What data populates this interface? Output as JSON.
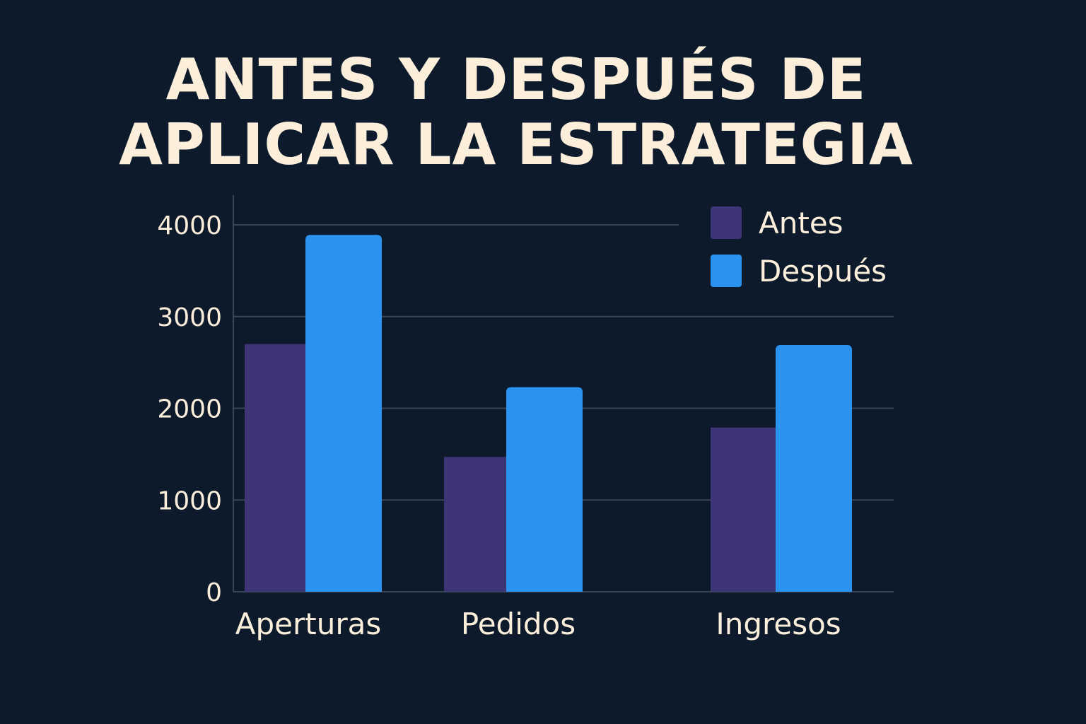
{
  "title_lines": [
    "ANTES Y DESPUÉS DE",
    "APLICAR LA ESTRATEGIA"
  ],
  "colors": {
    "background": "#0d1a2b",
    "text": "#fbeedb",
    "grid": "#3a4656",
    "antes": "#3d3575",
    "despues": "#2a93f0"
  },
  "chart_data": {
    "type": "bar",
    "title": "ANTES Y DESPUÉS DE APLICAR LA ESTRATEGIA",
    "categories": [
      "Aperturas",
      "Pedidos",
      "Ingresos"
    ],
    "series": [
      {
        "name": "Antes",
        "values": [
          2700,
          1470,
          1790
        ],
        "color": "#3d3575"
      },
      {
        "name": "Después",
        "values": [
          3890,
          2230,
          2690
        ],
        "color": "#2a93f0"
      }
    ],
    "xlabel": "",
    "ylabel": "",
    "ylim": [
      0,
      4000
    ],
    "yticks": [
      0,
      1000,
      2000,
      3000,
      4000
    ],
    "grid": true,
    "legend": "top-right"
  }
}
